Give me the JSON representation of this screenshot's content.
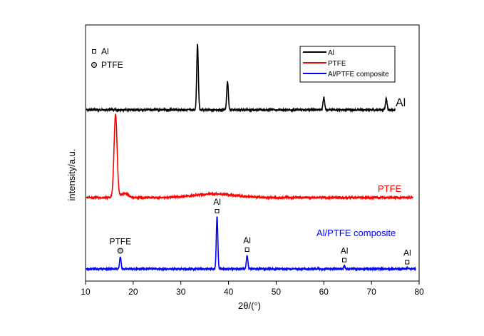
{
  "chart_data": {
    "type": "line",
    "xlabel": "2θ/(°)",
    "ylabel": "intensity/a.u.",
    "xlim": [
      10,
      80
    ],
    "x_ticks": [
      10,
      20,
      30,
      40,
      50,
      60,
      70,
      80
    ],
    "grid": false,
    "series": [
      {
        "name": "Al",
        "color": "#000000",
        "trace_label": "Al",
        "baseline": 0,
        "x_range": [
          10.2,
          75.0
        ],
        "peaks": [
          {
            "x": 33.5,
            "height": 1.0
          },
          {
            "x": 39.8,
            "height": 0.43
          },
          {
            "x": 60.0,
            "height": 0.19
          },
          {
            "x": 73.1,
            "height": 0.17
          }
        ]
      },
      {
        "name": "PTFE",
        "color": "#ff0000",
        "trace_label": "PTFE",
        "baseline": 0,
        "x_range": [
          10.2,
          78.7
        ],
        "peaks": [
          {
            "x": 16.3,
            "height": 1.0
          }
        ]
      },
      {
        "name": "Al/PTFE composite",
        "color": "#0000ff",
        "trace_label": "Al/PTFE composite",
        "baseline": 0,
        "x_range": [
          10.2,
          79.3
        ],
        "peaks": [
          {
            "x": 17.3,
            "height": 0.24
          },
          {
            "x": 37.6,
            "height": 1.0
          },
          {
            "x": 43.9,
            "height": 0.26
          },
          {
            "x": 64.3,
            "height": 0.06
          },
          {
            "x": 77.5,
            "height": 0.02
          }
        ]
      }
    ],
    "legend": {
      "position": "top-right",
      "entries": [
        "Al",
        "PTFE",
        "Al/PTFE composite"
      ]
    },
    "marker_legend": {
      "position": "top-left",
      "entries": [
        {
          "marker": "square",
          "label": "Al"
        },
        {
          "marker": "circle",
          "label": "PTFE"
        }
      ]
    },
    "annotations": [
      {
        "text": "PTFE",
        "marker": "circle",
        "x": 17.3,
        "series": "Al/PTFE composite"
      },
      {
        "text": "Al",
        "marker": "square",
        "x": 37.6,
        "series": "Al/PTFE composite"
      },
      {
        "text": "Al",
        "marker": "square",
        "x": 43.9,
        "series": "Al/PTFE composite"
      },
      {
        "text": "Al",
        "marker": "square",
        "x": 64.3,
        "series": "Al/PTFE composite"
      },
      {
        "text": "Al",
        "marker": "square",
        "x": 77.5,
        "series": "Al/PTFE composite"
      }
    ]
  }
}
